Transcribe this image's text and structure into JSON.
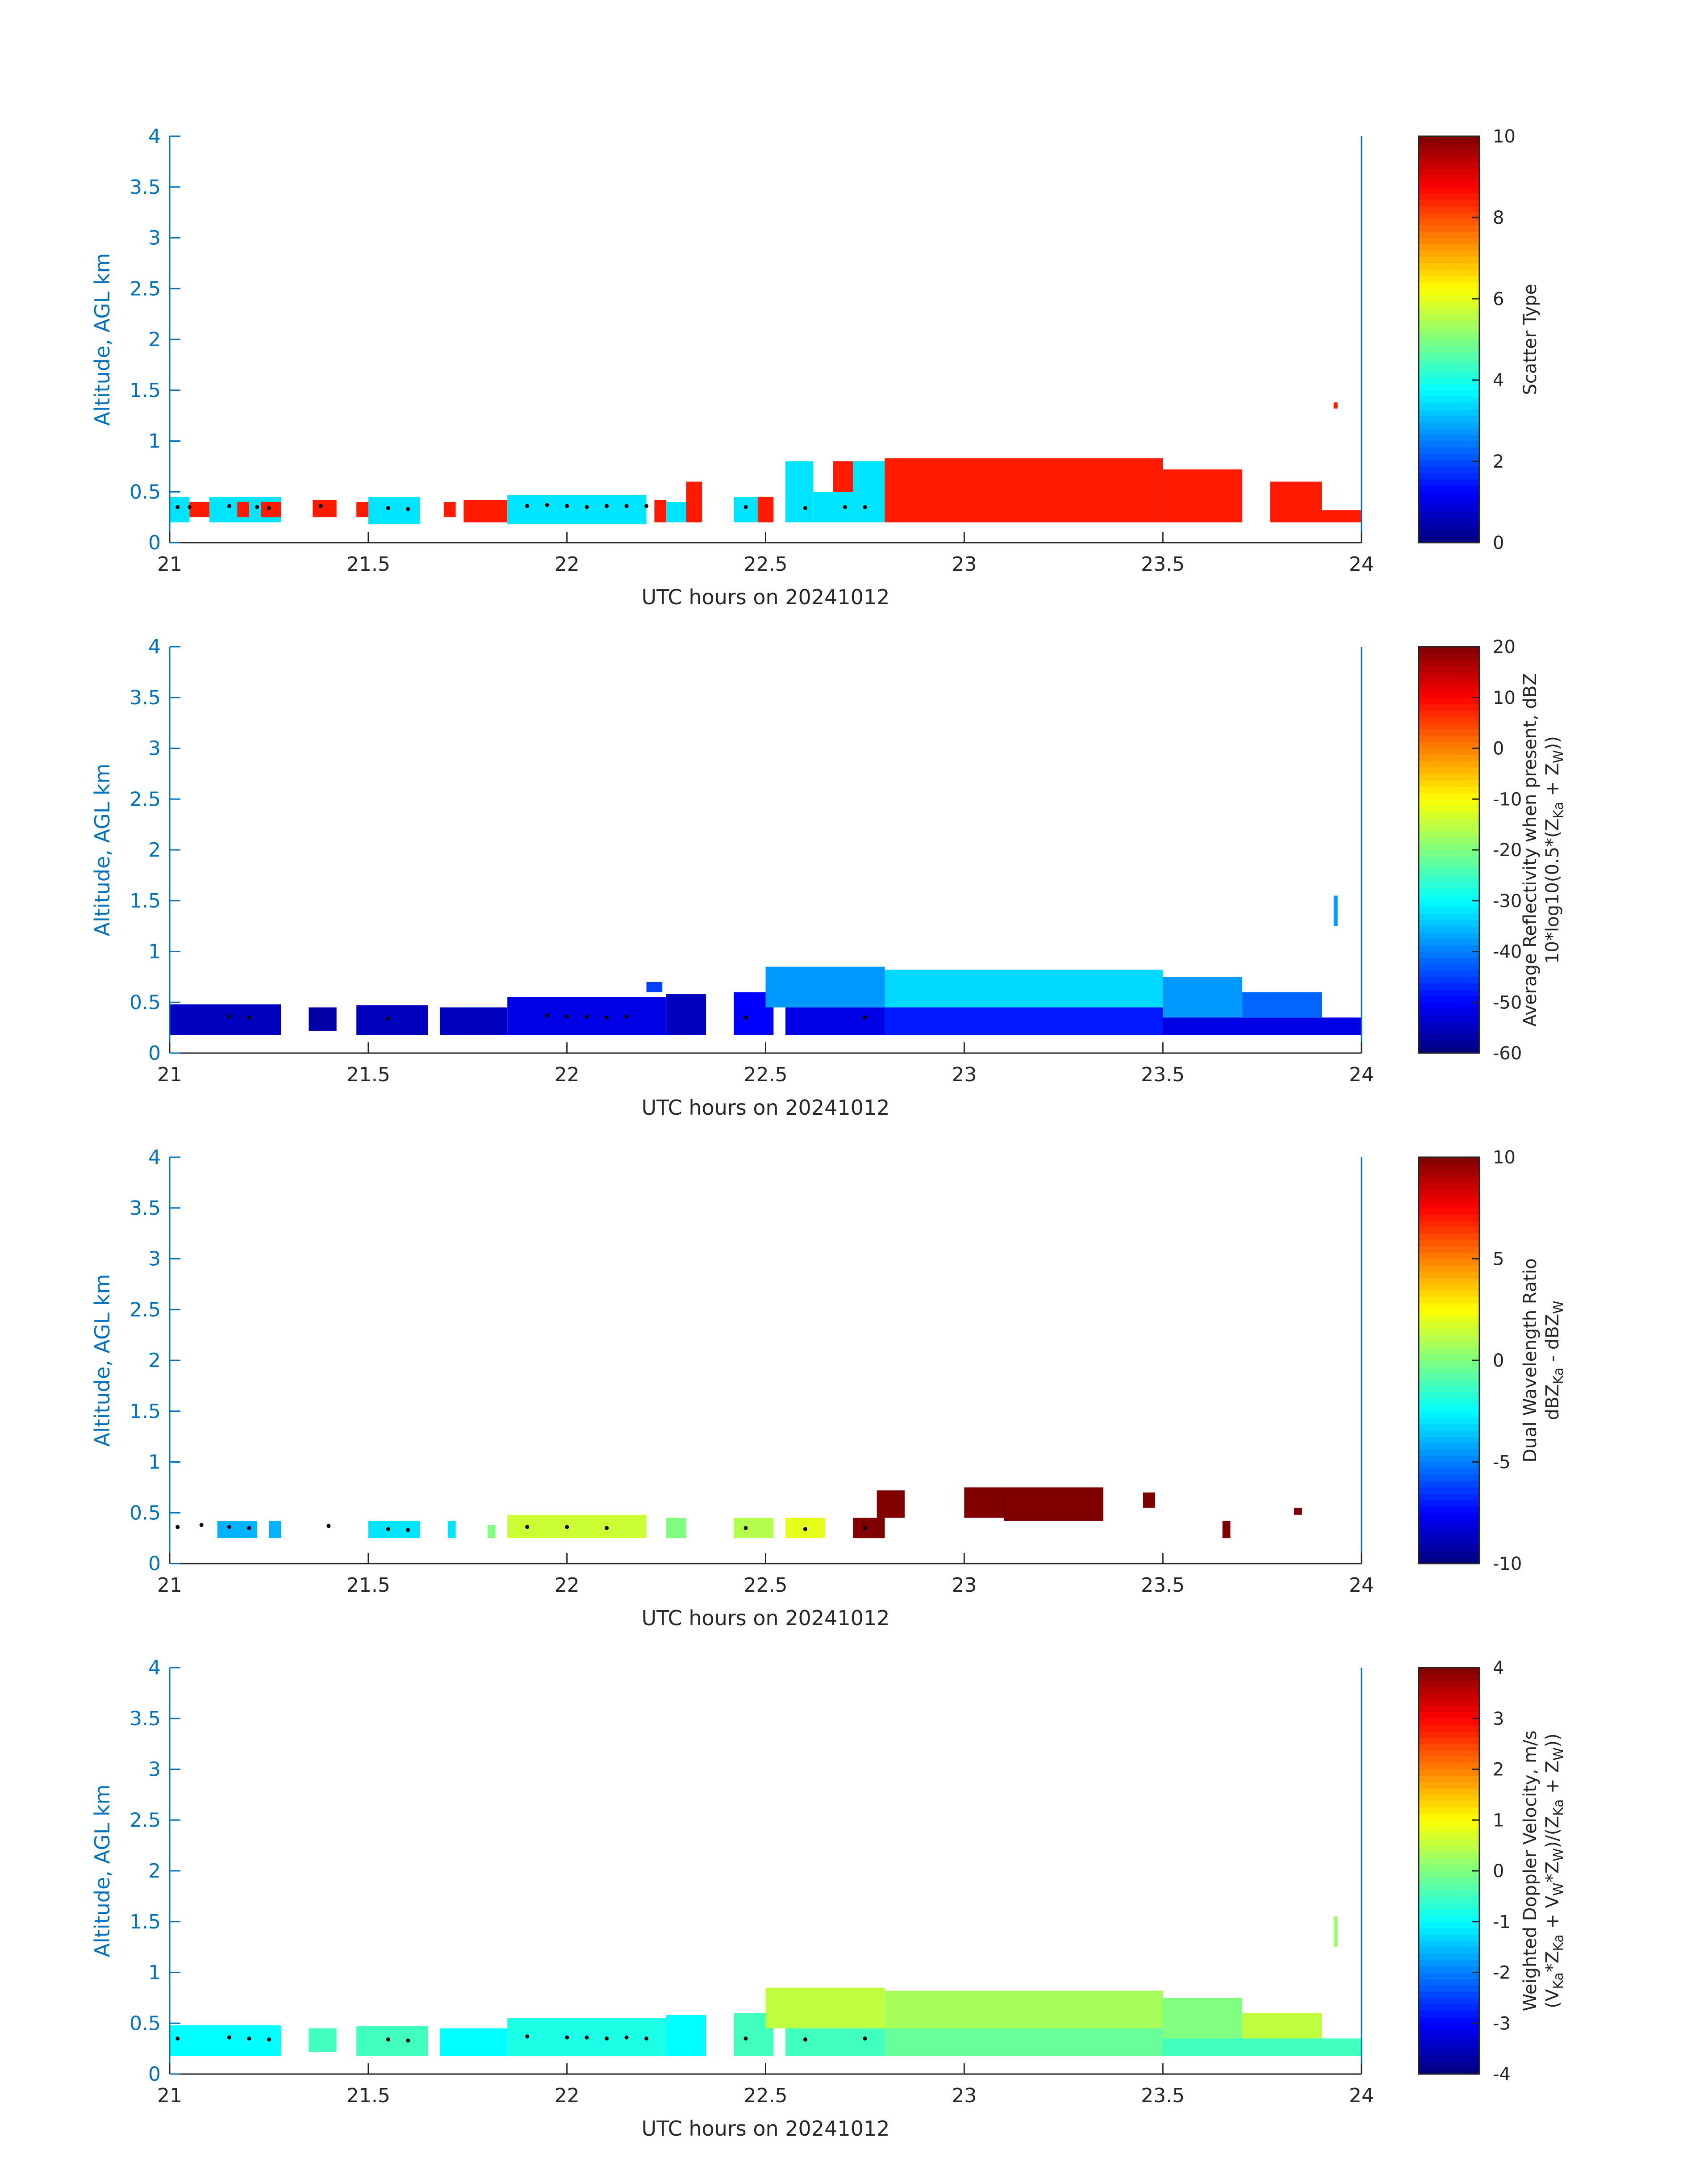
{
  "figure": {
    "xlabel": "UTC hours on 20241012",
    "ylabel": "Altitude, AGL km",
    "axis_color": "#0072BD",
    "colormap": "jet"
  },
  "chart_data": [
    {
      "type": "heatmap",
      "xlabel": "UTC hours on 20241012",
      "ylabel": "Altitude, AGL km",
      "xlim": [
        21,
        24
      ],
      "ylim": [
        0,
        4
      ],
      "xticks": [
        "21",
        "21.5",
        "22",
        "22.5",
        "23",
        "23.5",
        "24"
      ],
      "yticks": [
        "0",
        "0.5",
        "1",
        "1.5",
        "2",
        "2.5",
        "3",
        "3.5",
        "4"
      ],
      "colorbar": {
        "label_lines": [
          "Scatter Type"
        ],
        "range": [
          0,
          10
        ],
        "ticks": [
          "0",
          "2",
          "4",
          "6",
          "8",
          "10"
        ]
      },
      "cells": [
        {
          "x": [
            21.0,
            21.05
          ],
          "y": [
            0.2,
            0.45
          ],
          "v": 3.5
        },
        {
          "x": [
            21.05,
            21.1
          ],
          "y": [
            0.25,
            0.4
          ],
          "v": 8.5
        },
        {
          "x": [
            21.1,
            21.28
          ],
          "y": [
            0.2,
            0.45
          ],
          "v": 3.5
        },
        {
          "x": [
            21.17,
            21.2
          ],
          "y": [
            0.25,
            0.4
          ],
          "v": 8.5
        },
        {
          "x": [
            21.23,
            21.28
          ],
          "y": [
            0.25,
            0.4
          ],
          "v": 8.5
        },
        {
          "x": [
            21.36,
            21.42
          ],
          "y": [
            0.25,
            0.42
          ],
          "v": 8.5
        },
        {
          "x": [
            21.47,
            21.5
          ],
          "y": [
            0.25,
            0.4
          ],
          "v": 8.5
        },
        {
          "x": [
            21.5,
            21.63
          ],
          "y": [
            0.18,
            0.45
          ],
          "v": 3.5
        },
        {
          "x": [
            21.69,
            21.72
          ],
          "y": [
            0.25,
            0.4
          ],
          "v": 8.5
        },
        {
          "x": [
            21.74,
            21.85
          ],
          "y": [
            0.2,
            0.42
          ],
          "v": 8.5
        },
        {
          "x": [
            21.85,
            22.2
          ],
          "y": [
            0.18,
            0.47
          ],
          "v": 3.5
        },
        {
          "x": [
            22.22,
            22.25
          ],
          "y": [
            0.2,
            0.42
          ],
          "v": 8.5
        },
        {
          "x": [
            22.25,
            22.3
          ],
          "y": [
            0.2,
            0.4
          ],
          "v": 3.5
        },
        {
          "x": [
            22.3,
            22.34
          ],
          "y": [
            0.2,
            0.6
          ],
          "v": 8.5
        },
        {
          "x": [
            22.42,
            22.48
          ],
          "y": [
            0.2,
            0.45
          ],
          "v": 3.5
        },
        {
          "x": [
            22.48,
            22.52
          ],
          "y": [
            0.2,
            0.45
          ],
          "v": 8.5
        },
        {
          "x": [
            22.55,
            22.62
          ],
          "y": [
            0.2,
            0.8
          ],
          "v": 3.5
        },
        {
          "x": [
            22.62,
            22.72
          ],
          "y": [
            0.2,
            0.5
          ],
          "v": 3.5
        },
        {
          "x": [
            22.67,
            22.72
          ],
          "y": [
            0.5,
            0.8
          ],
          "v": 8.5
        },
        {
          "x": [
            22.72,
            22.8
          ],
          "y": [
            0.2,
            0.8
          ],
          "v": 3.5
        },
        {
          "x": [
            22.8,
            23.5
          ],
          "y": [
            0.2,
            0.83
          ],
          "v": 8.5
        },
        {
          "x": [
            23.5,
            23.7
          ],
          "y": [
            0.2,
            0.72
          ],
          "v": 8.5
        },
        {
          "x": [
            23.77,
            23.9
          ],
          "y": [
            0.2,
            0.6
          ],
          "v": 8.5
        },
        {
          "x": [
            23.93,
            23.94
          ],
          "y": [
            1.32,
            1.38
          ],
          "v": 8.5
        },
        {
          "x": [
            23.9,
            24.0
          ],
          "y": [
            0.2,
            0.32
          ],
          "v": 8.5
        }
      ],
      "layer_top_dots": [
        [
          21.02,
          0.35
        ],
        [
          21.05,
          0.35
        ],
        [
          21.15,
          0.36
        ],
        [
          21.22,
          0.35
        ],
        [
          21.25,
          0.34
        ],
        [
          21.38,
          0.36
        ],
        [
          21.55,
          0.34
        ],
        [
          21.6,
          0.33
        ],
        [
          21.9,
          0.36
        ],
        [
          21.95,
          0.37
        ],
        [
          22.0,
          0.36
        ],
        [
          22.05,
          0.35
        ],
        [
          22.1,
          0.36
        ],
        [
          22.15,
          0.36
        ],
        [
          22.2,
          0.36
        ],
        [
          22.45,
          0.35
        ],
        [
          22.6,
          0.34
        ],
        [
          22.7,
          0.35
        ],
        [
          22.75,
          0.35
        ]
      ]
    },
    {
      "type": "heatmap",
      "xlabel": "UTC hours on 20241012",
      "ylabel": "Altitude, AGL km",
      "xlim": [
        21,
        24
      ],
      "ylim": [
        0,
        4
      ],
      "xticks": [
        "21",
        "21.5",
        "22",
        "22.5",
        "23",
        "23.5",
        "24"
      ],
      "yticks": [
        "0",
        "0.5",
        "1",
        "1.5",
        "2",
        "2.5",
        "3",
        "3.5",
        "4"
      ],
      "colorbar": {
        "label_lines": [
          "Average Reflectivity when present, dBZ",
          "10*log10(0.5*(Z",
          "Ka",
          " + Z",
          "W",
          "))"
        ],
        "range": [
          -60,
          20
        ],
        "ticks": [
          "-60",
          "-50",
          "-40",
          "-30",
          "-20",
          "-10",
          "0",
          "10",
          "20"
        ]
      },
      "cells": [
        {
          "x": [
            21.0,
            21.28
          ],
          "y": [
            0.18,
            0.48
          ],
          "v": -55
        },
        {
          "x": [
            21.35,
            21.42
          ],
          "y": [
            0.22,
            0.45
          ],
          "v": -57
        },
        {
          "x": [
            21.47,
            21.65
          ],
          "y": [
            0.18,
            0.47
          ],
          "v": -55
        },
        {
          "x": [
            21.68,
            21.85
          ],
          "y": [
            0.18,
            0.45
          ],
          "v": -55
        },
        {
          "x": [
            21.85,
            22.25
          ],
          "y": [
            0.18,
            0.55
          ],
          "v": -52
        },
        {
          "x": [
            22.2,
            22.24
          ],
          "y": [
            0.6,
            0.7
          ],
          "v": -45
        },
        {
          "x": [
            22.25,
            22.35
          ],
          "y": [
            0.18,
            0.58
          ],
          "v": -55
        },
        {
          "x": [
            22.42,
            22.52
          ],
          "y": [
            0.18,
            0.6
          ],
          "v": -50
        },
        {
          "x": [
            22.55,
            22.8
          ],
          "y": [
            0.18,
            0.45
          ],
          "v": -52
        },
        {
          "x": [
            22.5,
            22.8
          ],
          "y": [
            0.45,
            0.85
          ],
          "v": -38
        },
        {
          "x": [
            22.8,
            23.5
          ],
          "y": [
            0.45,
            0.82
          ],
          "v": -33
        },
        {
          "x": [
            22.8,
            23.5
          ],
          "y": [
            0.18,
            0.45
          ],
          "v": -48
        },
        {
          "x": [
            23.5,
            23.7
          ],
          "y": [
            0.35,
            0.75
          ],
          "v": -38
        },
        {
          "x": [
            23.5,
            24.0
          ],
          "y": [
            0.18,
            0.35
          ],
          "v": -52
        },
        {
          "x": [
            23.7,
            23.9
          ],
          "y": [
            0.35,
            0.6
          ],
          "v": -42
        },
        {
          "x": [
            23.93,
            23.94
          ],
          "y": [
            1.25,
            1.55
          ],
          "v": -38
        }
      ],
      "layer_top_dots": [
        [
          21.15,
          0.36
        ],
        [
          21.2,
          0.35
        ],
        [
          21.55,
          0.34
        ],
        [
          21.95,
          0.37
        ],
        [
          22.0,
          0.36
        ],
        [
          22.05,
          0.36
        ],
        [
          22.1,
          0.35
        ],
        [
          22.15,
          0.36
        ],
        [
          22.45,
          0.35
        ],
        [
          22.75,
          0.35
        ]
      ]
    },
    {
      "type": "heatmap",
      "xlabel": "UTC hours on 20241012",
      "ylabel": "Altitude, AGL km",
      "xlim": [
        21,
        24
      ],
      "ylim": [
        0,
        4
      ],
      "xticks": [
        "21",
        "21.5",
        "22",
        "22.5",
        "23",
        "23.5",
        "24"
      ],
      "yticks": [
        "0",
        "0.5",
        "1",
        "1.5",
        "2",
        "2.5",
        "3",
        "3.5",
        "4"
      ],
      "colorbar": {
        "label_lines": [
          "Dual Wavelength Ratio",
          "dBZ",
          "Ka",
          " - dBZ",
          "W"
        ],
        "range": [
          -10,
          10
        ],
        "ticks": [
          "-10",
          "-5",
          "0",
          "5",
          "10"
        ]
      },
      "cells": [
        {
          "x": [
            21.12,
            21.22
          ],
          "y": [
            0.25,
            0.42
          ],
          "v": -4
        },
        {
          "x": [
            21.25,
            21.28
          ],
          "y": [
            0.25,
            0.42
          ],
          "v": -4
        },
        {
          "x": [
            21.5,
            21.63
          ],
          "y": [
            0.25,
            0.42
          ],
          "v": -3
        },
        {
          "x": [
            21.7,
            21.72
          ],
          "y": [
            0.25,
            0.42
          ],
          "v": -3
        },
        {
          "x": [
            21.8,
            21.82
          ],
          "y": [
            0.25,
            0.38
          ],
          "v": 0
        },
        {
          "x": [
            21.85,
            22.2
          ],
          "y": [
            0.25,
            0.48
          ],
          "v": 1.5
        },
        {
          "x": [
            22.25,
            22.3
          ],
          "y": [
            0.25,
            0.45
          ],
          "v": 0
        },
        {
          "x": [
            22.42,
            22.52
          ],
          "y": [
            0.25,
            0.45
          ],
          "v": 1
        },
        {
          "x": [
            22.55,
            22.65
          ],
          "y": [
            0.25,
            0.45
          ],
          "v": 2
        },
        {
          "x": [
            22.72,
            22.8
          ],
          "y": [
            0.25,
            0.45
          ],
          "v": 10
        },
        {
          "x": [
            22.78,
            22.85
          ],
          "y": [
            0.45,
            0.72
          ],
          "v": 10
        },
        {
          "x": [
            23.0,
            23.1
          ],
          "y": [
            0.45,
            0.75
          ],
          "v": 10
        },
        {
          "x": [
            23.1,
            23.35
          ],
          "y": [
            0.42,
            0.75
          ],
          "v": 10
        },
        {
          "x": [
            23.45,
            23.48
          ],
          "y": [
            0.55,
            0.7
          ],
          "v": 10
        },
        {
          "x": [
            23.65,
            23.67
          ],
          "y": [
            0.25,
            0.42
          ],
          "v": 10
        },
        {
          "x": [
            23.83,
            23.85
          ],
          "y": [
            0.48,
            0.55
          ],
          "v": 10
        }
      ],
      "layer_top_dots": [
        [
          21.02,
          0.36
        ],
        [
          21.08,
          0.38
        ],
        [
          21.15,
          0.36
        ],
        [
          21.2,
          0.35
        ],
        [
          21.4,
          0.37
        ],
        [
          21.55,
          0.34
        ],
        [
          21.6,
          0.33
        ],
        [
          21.9,
          0.36
        ],
        [
          22.0,
          0.36
        ],
        [
          22.1,
          0.35
        ],
        [
          22.45,
          0.35
        ],
        [
          22.6,
          0.34
        ],
        [
          22.75,
          0.35
        ]
      ]
    },
    {
      "type": "heatmap",
      "xlabel": "UTC hours on 20241012",
      "ylabel": "Altitude, AGL km",
      "xlim": [
        21,
        24
      ],
      "ylim": [
        0,
        4
      ],
      "xticks": [
        "21",
        "21.5",
        "22",
        "22.5",
        "23",
        "23.5",
        "24"
      ],
      "yticks": [
        "0",
        "0.5",
        "1",
        "1.5",
        "2",
        "2.5",
        "3",
        "3.5",
        "4"
      ],
      "colorbar": {
        "label_lines": [
          "Weighted Doppler Velocity, m/s",
          "(V",
          "Ka",
          "*Z",
          "Ka",
          " + V",
          "W",
          "*Z",
          "W",
          ")/(Z",
          "Ka",
          " + Z",
          "W",
          "))"
        ],
        "range": [
          -4,
          4
        ],
        "ticks": [
          "-4",
          "-3",
          "-2",
          "-1",
          "0",
          "1",
          "2",
          "3",
          "4"
        ]
      },
      "cells": [
        {
          "x": [
            21.0,
            21.28
          ],
          "y": [
            0.18,
            0.48
          ],
          "v": -1
        },
        {
          "x": [
            21.35,
            21.42
          ],
          "y": [
            0.22,
            0.45
          ],
          "v": -0.5
        },
        {
          "x": [
            21.47,
            21.65
          ],
          "y": [
            0.18,
            0.47
          ],
          "v": -0.5
        },
        {
          "x": [
            21.68,
            21.85
          ],
          "y": [
            0.18,
            0.45
          ],
          "v": -1
        },
        {
          "x": [
            21.85,
            22.25
          ],
          "y": [
            0.18,
            0.55
          ],
          "v": -0.8
        },
        {
          "x": [
            22.25,
            22.35
          ],
          "y": [
            0.18,
            0.58
          ],
          "v": -1
        },
        {
          "x": [
            22.42,
            22.52
          ],
          "y": [
            0.18,
            0.6
          ],
          "v": -0.5
        },
        {
          "x": [
            22.55,
            22.8
          ],
          "y": [
            0.18,
            0.45
          ],
          "v": -0.5
        },
        {
          "x": [
            22.5,
            22.8
          ],
          "y": [
            0.45,
            0.85
          ],
          "v": 0.5
        },
        {
          "x": [
            22.8,
            23.5
          ],
          "y": [
            0.45,
            0.82
          ],
          "v": 0.3
        },
        {
          "x": [
            22.8,
            23.5
          ],
          "y": [
            0.18,
            0.45
          ],
          "v": -0.2
        },
        {
          "x": [
            23.5,
            23.7
          ],
          "y": [
            0.35,
            0.75
          ],
          "v": 0
        },
        {
          "x": [
            23.5,
            24.0
          ],
          "y": [
            0.18,
            0.35
          ],
          "v": -0.5
        },
        {
          "x": [
            23.7,
            23.9
          ],
          "y": [
            0.35,
            0.6
          ],
          "v": 0.5
        },
        {
          "x": [
            23.93,
            23.94
          ],
          "y": [
            1.25,
            1.55
          ],
          "v": 0.2
        }
      ],
      "layer_top_dots": [
        [
          21.02,
          0.35
        ],
        [
          21.15,
          0.36
        ],
        [
          21.2,
          0.35
        ],
        [
          21.25,
          0.34
        ],
        [
          21.55,
          0.34
        ],
        [
          21.6,
          0.33
        ],
        [
          21.9,
          0.37
        ],
        [
          22.0,
          0.36
        ],
        [
          22.05,
          0.36
        ],
        [
          22.1,
          0.35
        ],
        [
          22.15,
          0.36
        ],
        [
          22.2,
          0.35
        ],
        [
          22.45,
          0.35
        ],
        [
          22.6,
          0.34
        ],
        [
          22.75,
          0.35
        ]
      ]
    }
  ]
}
